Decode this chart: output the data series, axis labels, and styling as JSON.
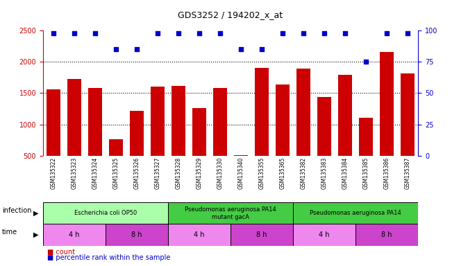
{
  "title": "GDS3252 / 194202_x_at",
  "samples": [
    "GSM135322",
    "GSM135323",
    "GSM135324",
    "GSM135325",
    "GSM135326",
    "GSM135327",
    "GSM135328",
    "GSM135329",
    "GSM135330",
    "GSM135340",
    "GSM135355",
    "GSM135365",
    "GSM135382",
    "GSM135383",
    "GSM135384",
    "GSM135385",
    "GSM135386",
    "GSM135387"
  ],
  "counts": [
    1560,
    1730,
    1580,
    760,
    1220,
    1600,
    1610,
    1260,
    1580,
    510,
    1900,
    1640,
    1890,
    1440,
    1790,
    1110,
    2160,
    1820
  ],
  "percentiles": [
    98,
    98,
    98,
    85,
    85,
    98,
    98,
    98,
    98,
    85,
    85,
    98,
    98,
    98,
    98,
    75,
    98,
    98
  ],
  "bar_color": "#cc0000",
  "dot_color": "#0000cc",
  "ylim_left": [
    500,
    2500
  ],
  "ylim_right": [
    0,
    100
  ],
  "yticks_left": [
    500,
    1000,
    1500,
    2000,
    2500
  ],
  "yticks_right": [
    0,
    25,
    50,
    75,
    100
  ],
  "grid_values": [
    1000,
    1500,
    2000
  ],
  "infection_groups": [
    {
      "label": "Escherichia coli OP50",
      "start": 0,
      "end": 6,
      "color": "#aaffaa"
    },
    {
      "label": "Pseudomonas aeruginosa PA14\nmutant gacA",
      "start": 6,
      "end": 12,
      "color": "#44cc44"
    },
    {
      "label": "Pseudomonas aeruginosa PA14",
      "start": 12,
      "end": 18,
      "color": "#44cc44"
    }
  ],
  "time_groups": [
    {
      "label": "4 h",
      "start": 0,
      "end": 3,
      "color": "#ee88ee"
    },
    {
      "label": "8 h",
      "start": 3,
      "end": 6,
      "color": "#cc44cc"
    },
    {
      "label": "4 h",
      "start": 6,
      "end": 9,
      "color": "#ee88ee"
    },
    {
      "label": "8 h",
      "start": 9,
      "end": 12,
      "color": "#cc44cc"
    },
    {
      "label": "4 h",
      "start": 12,
      "end": 15,
      "color": "#ee88ee"
    },
    {
      "label": "8 h",
      "start": 15,
      "end": 18,
      "color": "#cc44cc"
    }
  ],
  "bg_color": "#ffffff",
  "tick_area_color": "#cccccc",
  "left_axis_color": "#cc0000",
  "right_axis_color": "#0000cc"
}
